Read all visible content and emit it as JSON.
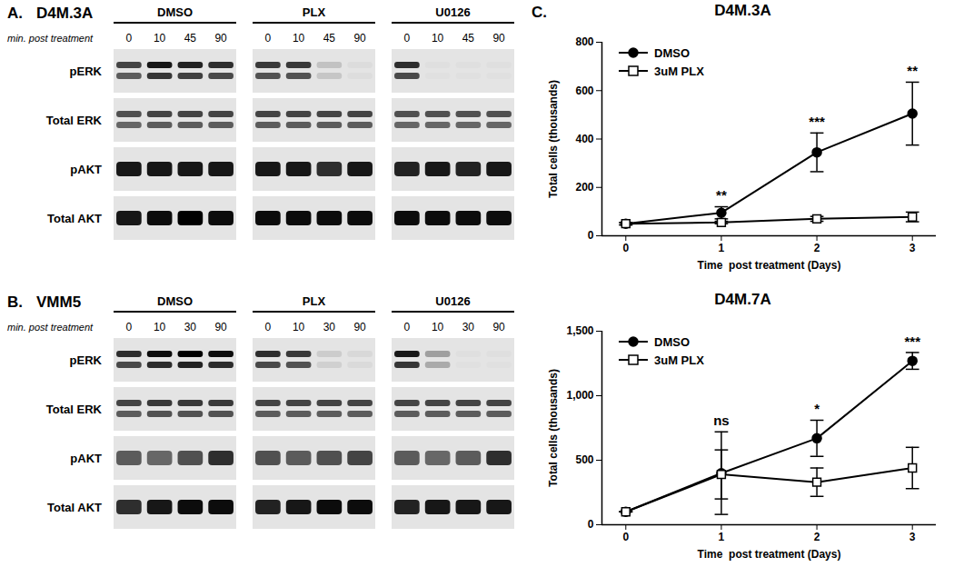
{
  "figure": {
    "panels": [
      {
        "label": "A.",
        "title": "D4M.3A",
        "time_label": "min. post treatment",
        "groups": [
          {
            "name": "DMSO",
            "times": [
              0,
              10,
              45,
              90
            ]
          },
          {
            "name": "PLX",
            "times": [
              0,
              10,
              45,
              90
            ]
          },
          {
            "name": "U0126",
            "times": [
              0,
              10,
              45,
              90
            ]
          }
        ],
        "rows": [
          {
            "name": "pERK",
            "intensity": [
              [
                0.7,
                0.9,
                0.85,
                0.8
              ],
              [
                0.75,
                0.75,
                0.15,
                0.03
              ],
              [
                0.8,
                0.02,
                0.02,
                0.02
              ]
            ]
          },
          {
            "name": "Total ERK",
            "intensity": [
              [
                0.65,
                0.7,
                0.7,
                0.7
              ],
              [
                0.7,
                0.7,
                0.7,
                0.7
              ],
              [
                0.65,
                0.65,
                0.65,
                0.65
              ]
            ]
          },
          {
            "name": "pAKT",
            "intensity": [
              [
                0.9,
                0.9,
                0.9,
                0.9
              ],
              [
                0.9,
                0.9,
                0.8,
                0.9
              ],
              [
                0.85,
                0.9,
                0.85,
                0.9
              ]
            ]
          },
          {
            "name": "Total AKT",
            "intensity": [
              [
                0.9,
                0.95,
                1.0,
                0.95
              ],
              [
                0.95,
                0.95,
                0.95,
                0.95
              ],
              [
                0.95,
                0.95,
                0.95,
                0.95
              ]
            ]
          }
        ]
      },
      {
        "label": "B.",
        "title": "VMM5",
        "time_label": "min. post treatment",
        "groups": [
          {
            "name": "DMSO",
            "times": [
              0,
              10,
              30,
              90
            ]
          },
          {
            "name": "PLX",
            "times": [
              0,
              10,
              30,
              90
            ]
          },
          {
            "name": "U0126",
            "times": [
              0,
              10,
              30,
              90
            ]
          }
        ],
        "rows": [
          {
            "name": "pERK",
            "intensity": [
              [
                0.8,
                0.95,
                1.0,
                0.95
              ],
              [
                0.8,
                0.75,
                0.1,
                0.05
              ],
              [
                0.9,
                0.3,
                0.02,
                0.02
              ]
            ]
          },
          {
            "name": "Total ERK",
            "intensity": [
              [
                0.7,
                0.75,
                0.75,
                0.75
              ],
              [
                0.7,
                0.7,
                0.7,
                0.7
              ],
              [
                0.7,
                0.7,
                0.7,
                0.7
              ]
            ]
          },
          {
            "name": "pAKT",
            "intensity": [
              [
                0.6,
                0.55,
                0.65,
                0.8
              ],
              [
                0.65,
                0.6,
                0.65,
                0.7
              ],
              [
                0.6,
                0.55,
                0.6,
                0.8
              ]
            ]
          },
          {
            "name": "Total AKT",
            "intensity": [
              [
                0.8,
                0.9,
                0.95,
                0.95
              ],
              [
                0.85,
                0.9,
                0.95,
                0.95
              ],
              [
                0.85,
                0.9,
                0.9,
                0.9
              ]
            ]
          }
        ]
      }
    ],
    "charts_label": "C."
  },
  "chart_data": [
    {
      "type": "line",
      "title": "D4M.3A",
      "x": [
        0,
        1,
        2,
        3
      ],
      "xlim": [
        -0.25,
        3.25
      ],
      "xticks": [
        0,
        1,
        2,
        3
      ],
      "ylim": [
        0,
        800
      ],
      "yticks": [
        0,
        200,
        400,
        600,
        800
      ],
      "x_label": "Time  post treatment (Days)",
      "y_label": "Total cells (thousands)",
      "legend": "top-left",
      "series": [
        {
          "name": "DMSO",
          "color": "#000000",
          "marker": "circle",
          "values": [
            50,
            95,
            345,
            505
          ],
          "errors": [
            5,
            25,
            80,
            130
          ]
        },
        {
          "name": "3uM PLX",
          "color": "#000000",
          "marker": "open_square",
          "values": [
            50,
            55,
            70,
            78
          ],
          "errors": [
            5,
            5,
            10,
            20
          ]
        }
      ],
      "annotations": {
        "x": [
          1,
          2,
          3
        ],
        "labels": [
          "**",
          "***",
          "**"
        ]
      }
    },
    {
      "type": "line",
      "title": "D4M.7A",
      "x": [
        0,
        1,
        2,
        3
      ],
      "xlim": [
        -0.25,
        3.25
      ],
      "xticks": [
        0,
        1,
        2,
        3
      ],
      "ylim": [
        0,
        1500
      ],
      "yticks": [
        0,
        500,
        {
          "value": 1000,
          "label": "1,000"
        },
        {
          "value": 1500,
          "label": "1,500"
        }
      ],
      "x_label": "Time  post treatment (Days)",
      "y_label": "Total cells (thousands)",
      "legend": "top-left",
      "series": [
        {
          "name": "DMSO",
          "color": "#000000",
          "marker": "circle",
          "values": [
            100,
            400,
            670,
            1270
          ],
          "errors": [
            0,
            320,
            140,
            65
          ]
        },
        {
          "name": "3uM PLX",
          "color": "#000000",
          "marker": "open_square",
          "values": [
            100,
            390,
            330,
            440
          ],
          "errors": [
            0,
            190,
            110,
            160
          ]
        }
      ],
      "annotations": {
        "x": [
          1,
          2,
          3
        ],
        "labels": [
          "ns",
          "*",
          "***"
        ]
      }
    }
  ]
}
